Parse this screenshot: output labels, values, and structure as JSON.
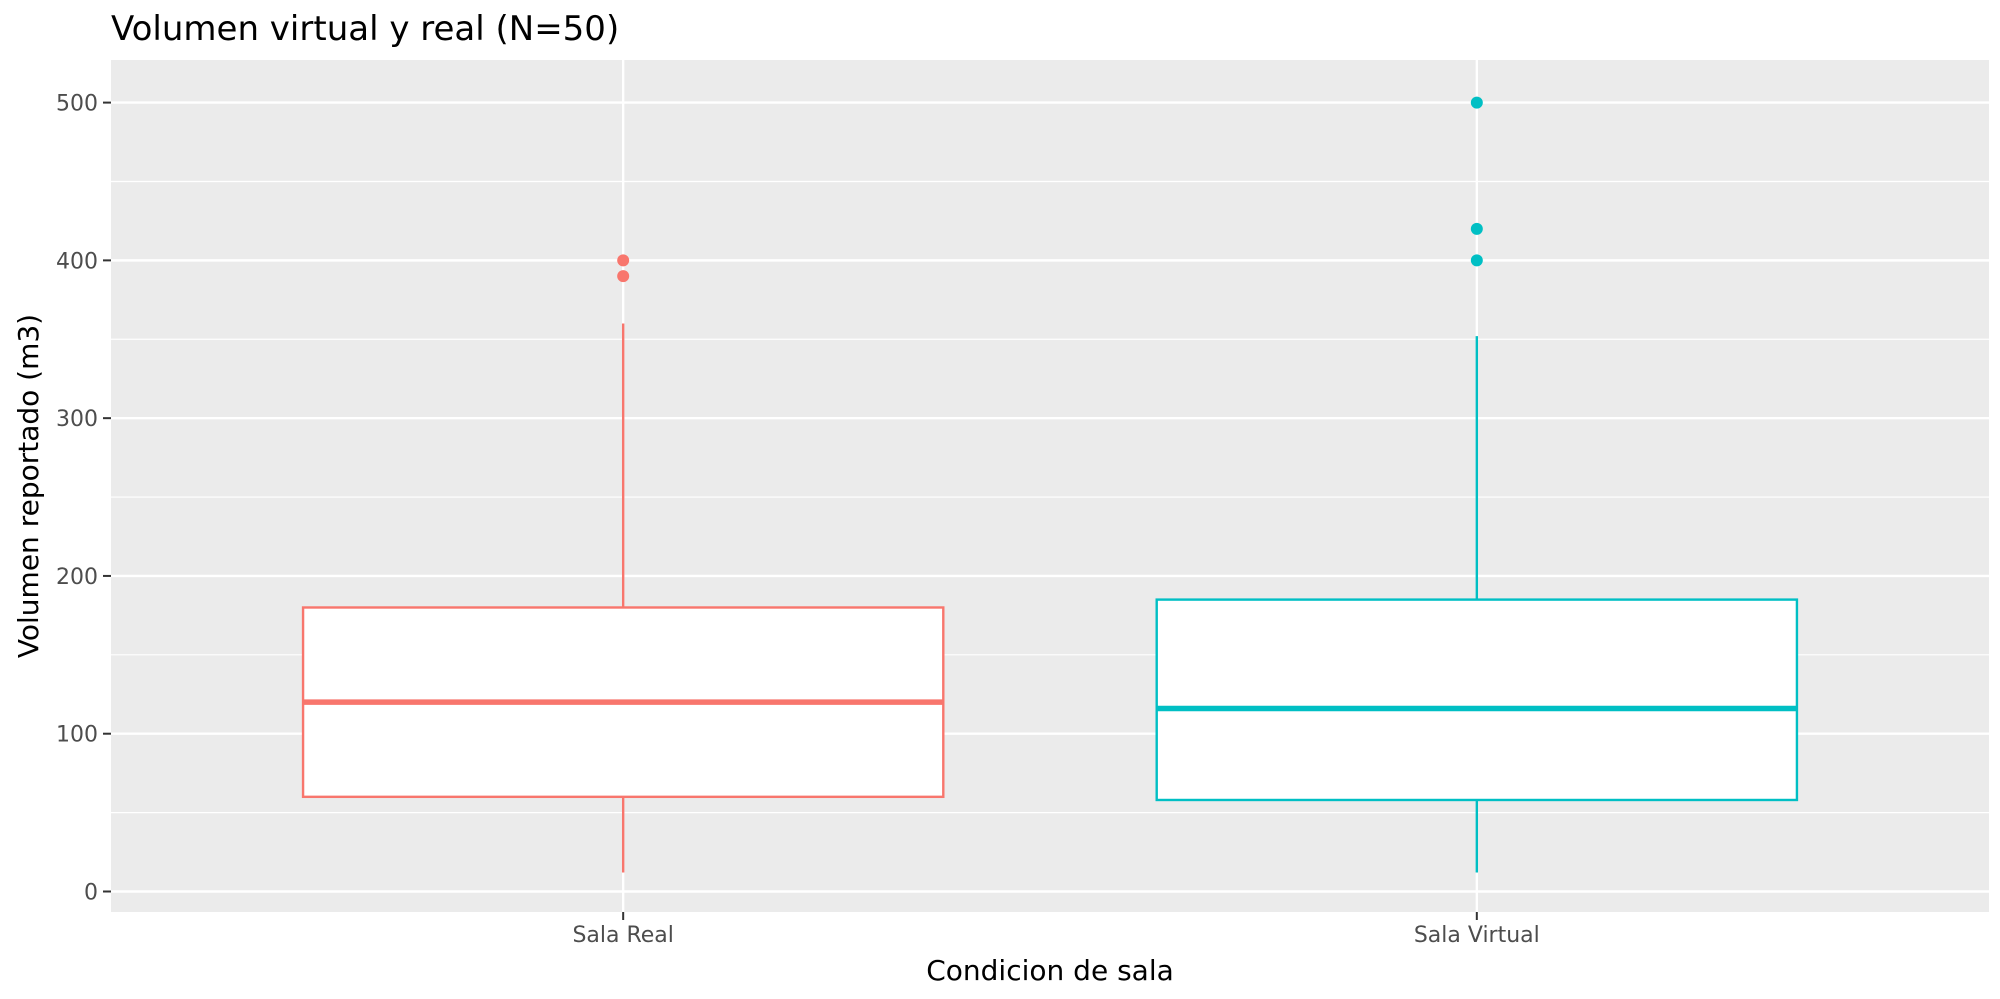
{
  "chart_data": {
    "type": "boxplot",
    "title": "Volumen virtual y real (N=50)",
    "xlabel": "Condicion de sala",
    "ylabel": "Volumen reportado (m3)",
    "ylim": [
      -13,
      527
    ],
    "y_ticks": [
      0,
      100,
      200,
      300,
      400,
      500
    ],
    "y_tick_labels": [
      "0",
      "100",
      "200",
      "300",
      "400",
      "500"
    ],
    "grid": true,
    "legend": "none",
    "categories": [
      "Sala Real",
      "Sala Virtual"
    ],
    "series": [
      {
        "category": "Sala Real",
        "color": "#F8766D",
        "whisker_low": 12,
        "q1": 60,
        "median": 120,
        "q3": 180,
        "whisker_high": 360,
        "outliers": [
          390,
          400
        ]
      },
      {
        "category": "Sala Virtual",
        "color": "#00BFC4",
        "whisker_low": 12,
        "q1": 58,
        "median": 116,
        "q3": 185,
        "whisker_high": 352,
        "outliers": [
          400,
          420,
          500
        ]
      }
    ],
    "panel_color": "#EBEBEB",
    "grid_color": "#FFFFFF"
  }
}
